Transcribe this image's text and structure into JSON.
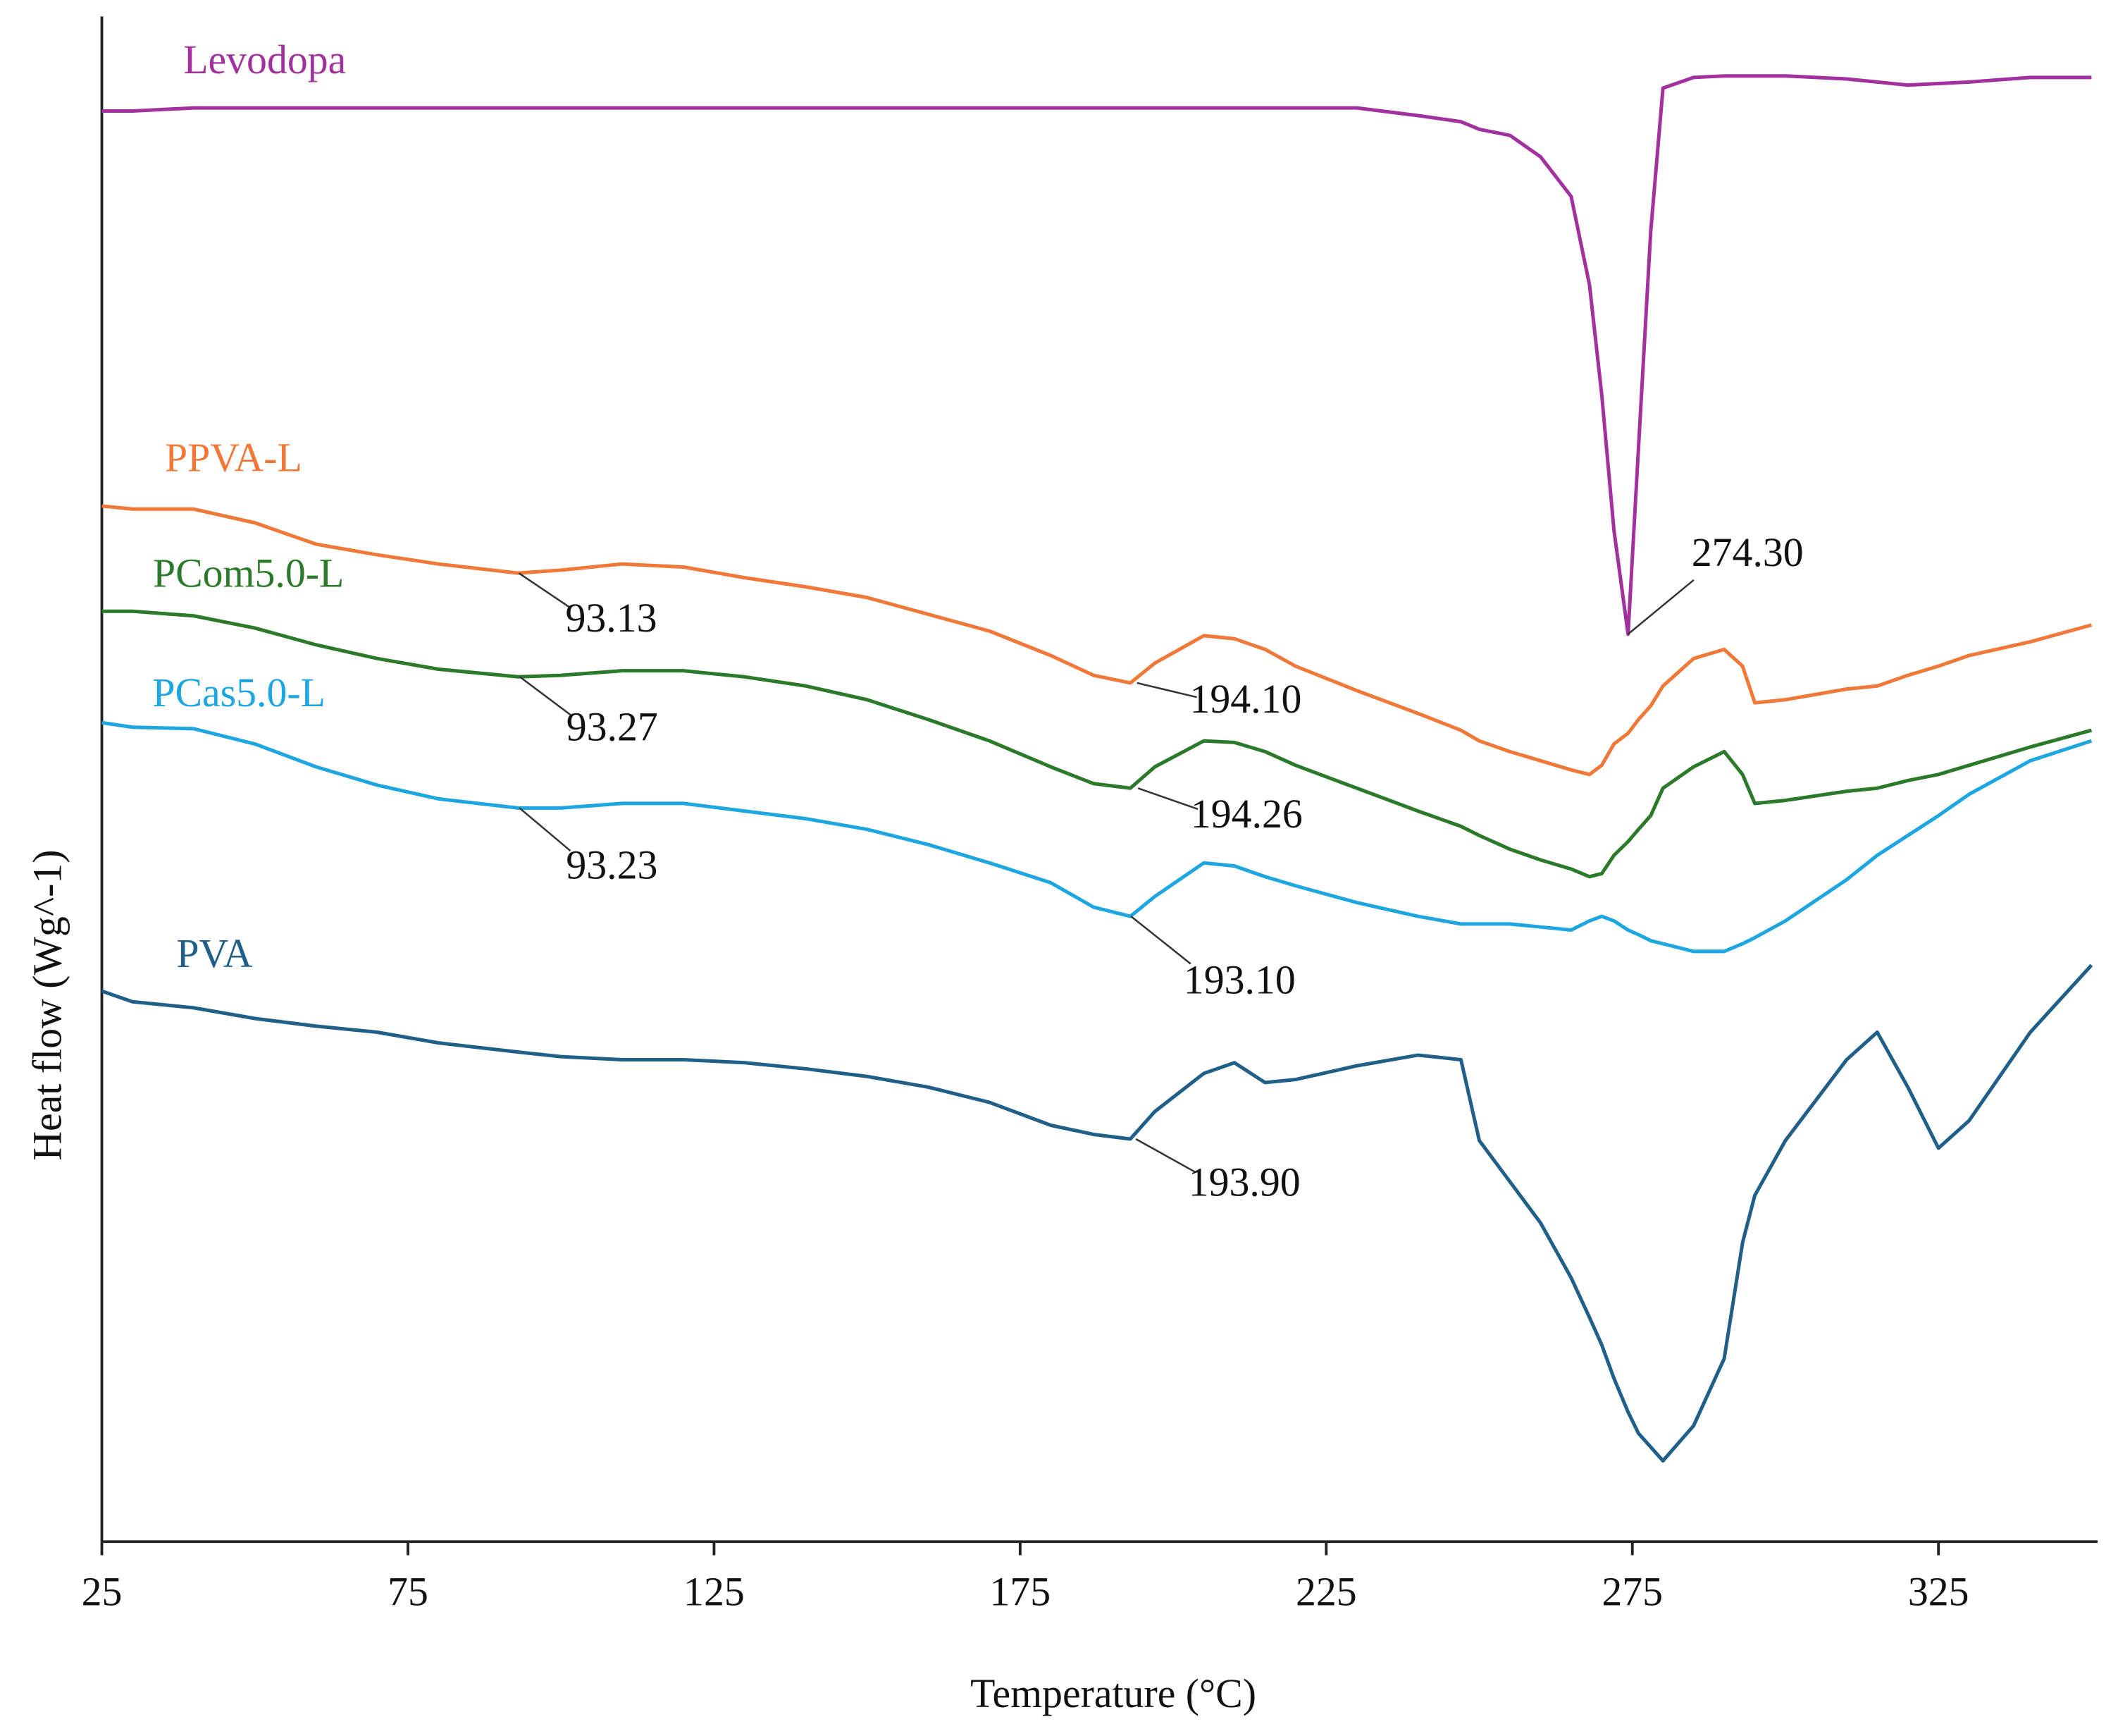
{
  "chart_data": {
    "type": "line",
    "xlabel": "Temperature (°C)",
    "ylabel": "Heat flow (Wg^-1)",
    "xlim": [
      25,
      351
    ],
    "ylim": [
      0,
      100
    ],
    "xticks": [
      25,
      75,
      125,
      175,
      225,
      275,
      325
    ],
    "x": [
      25,
      30,
      40,
      50,
      60,
      70,
      80,
      93,
      100,
      110,
      120,
      130,
      140,
      150,
      160,
      170,
      180,
      187,
      193,
      197,
      205,
      210,
      215,
      220,
      230,
      240,
      247,
      250,
      255,
      260,
      265,
      268,
      270,
      272,
      274.3,
      276,
      278,
      280,
      285,
      290,
      293,
      295,
      300,
      310,
      315,
      320,
      325,
      330,
      340,
      350
    ],
    "series": [
      {
        "name": "Levodopa",
        "color": "#a3309f",
        "values": [
          93.8,
          93.8,
          94.0,
          94.0,
          94.0,
          94.0,
          94.0,
          94.0,
          94.0,
          94.0,
          94.0,
          94.0,
          94.0,
          94.0,
          94.0,
          94.0,
          94.0,
          94.0,
          94.0,
          94.0,
          94.0,
          94.0,
          94.0,
          94.0,
          94.0,
          93.5,
          93.1,
          92.6,
          92.2,
          90.8,
          88.2,
          82.4,
          75.2,
          66.3,
          59.5,
          71.7,
          85.9,
          95.3,
          96.0,
          96.1,
          96.1,
          96.1,
          96.1,
          95.9,
          95.7,
          95.5,
          95.6,
          95.7,
          96.0,
          96.0
        ]
      },
      {
        "name": "PPVA-L",
        "color": "#f07838",
        "values": [
          67.9,
          67.7,
          67.7,
          66.8,
          65.4,
          64.7,
          64.1,
          63.5,
          63.7,
          64.1,
          63.9,
          63.2,
          62.6,
          61.9,
          60.8,
          59.7,
          58.1,
          56.8,
          56.3,
          57.6,
          59.4,
          59.2,
          58.5,
          57.4,
          55.8,
          54.3,
          53.2,
          52.5,
          51.8,
          51.2,
          50.6,
          50.3,
          50.9,
          52.3,
          53.0,
          53.9,
          54.8,
          56.1,
          57.9,
          58.5,
          57.4,
          55.0,
          55.2,
          55.9,
          56.1,
          56.8,
          57.4,
          58.1,
          59.0,
          60.1
        ]
      },
      {
        "name": "PCom5.0-L",
        "color": "#2a7a2a",
        "values": [
          61.0,
          61.0,
          60.7,
          59.9,
          58.8,
          57.9,
          57.2,
          56.7,
          56.8,
          57.1,
          57.1,
          56.7,
          56.1,
          55.2,
          53.9,
          52.5,
          50.8,
          49.7,
          49.4,
          50.8,
          52.5,
          52.4,
          51.8,
          50.9,
          49.4,
          47.9,
          46.9,
          46.3,
          45.4,
          44.7,
          44.1,
          43.6,
          43.8,
          45.0,
          45.9,
          46.7,
          47.6,
          49.4,
          50.8,
          51.8,
          50.3,
          48.4,
          48.6,
          49.2,
          49.4,
          49.9,
          50.3,
          50.9,
          52.1,
          53.2
        ]
      },
      {
        "name": "PCas5.0-L",
        "color": "#1ea6e0",
        "values": [
          53.7,
          53.4,
          53.3,
          52.3,
          50.8,
          49.6,
          48.7,
          48.1,
          48.1,
          48.4,
          48.4,
          47.9,
          47.4,
          46.7,
          45.7,
          44.5,
          43.2,
          41.6,
          41.0,
          42.3,
          44.5,
          44.3,
          43.6,
          43.0,
          41.9,
          41.0,
          40.5,
          40.5,
          40.5,
          40.3,
          40.1,
          40.7,
          41.0,
          40.7,
          40.1,
          39.8,
          39.4,
          39.2,
          38.7,
          38.7,
          39.2,
          39.6,
          40.7,
          43.4,
          45.0,
          46.3,
          47.6,
          49.0,
          51.2,
          52.5
        ]
      },
      {
        "name": "PVA",
        "color": "#1f5f88",
        "values": [
          36.1,
          35.4,
          35.0,
          34.3,
          33.8,
          33.4,
          32.7,
          32.1,
          31.8,
          31.6,
          31.6,
          31.4,
          31.0,
          30.5,
          29.8,
          28.8,
          27.3,
          26.7,
          26.4,
          28.2,
          30.7,
          31.4,
          30.1,
          30.3,
          31.2,
          31.9,
          31.6,
          26.3,
          23.6,
          20.9,
          17.3,
          14.7,
          12.9,
          10.7,
          8.5,
          7.1,
          6.2,
          5.3,
          7.6,
          12.0,
          19.6,
          22.7,
          26.3,
          31.6,
          33.4,
          29.8,
          25.8,
          27.6,
          33.4,
          37.8
        ]
      }
    ],
    "annotations": [
      {
        "text": "274.30",
        "x": 274.3,
        "y": 59.5
      },
      {
        "text": "93.13",
        "x": 93.13,
        "y": 63.5
      },
      {
        "text": "194.10",
        "x": 194.1,
        "y": 56.3
      },
      {
        "text": "93.27",
        "x": 93.27,
        "y": 56.7
      },
      {
        "text": "194.26",
        "x": 194.26,
        "y": 49.4
      },
      {
        "text": "93.23",
        "x": 93.23,
        "y": 48.1
      },
      {
        "text": "193.10",
        "x": 193.1,
        "y": 41.0
      },
      {
        "text": "193.90",
        "x": 193.9,
        "y": 26.4
      }
    ]
  }
}
